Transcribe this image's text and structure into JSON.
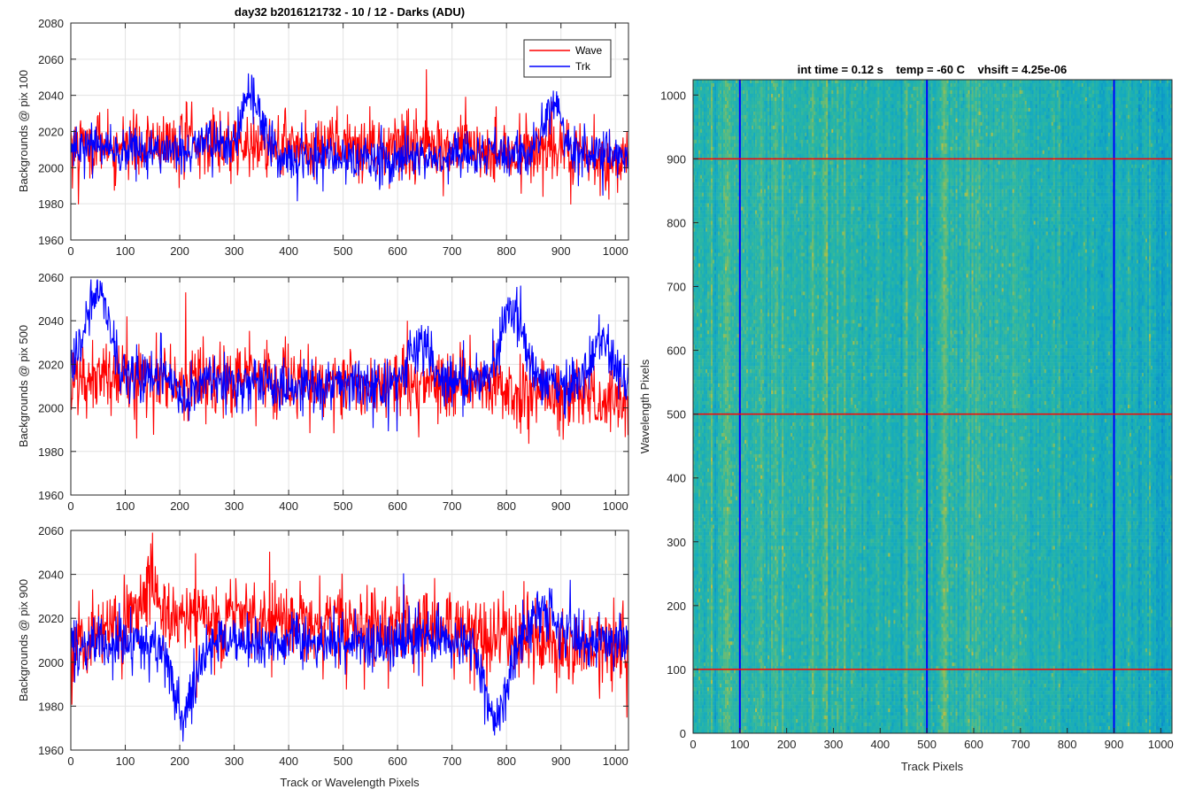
{
  "figure": {
    "colors": {
      "wave": "#ff0000",
      "trk": "#0000ff",
      "grid": "#e3e3e3",
      "axis": "#262626"
    }
  },
  "chart_data": [
    {
      "type": "line",
      "title": "day32 b2016121732 - 10 / 12 - Darks (ADU)",
      "xlabel": "",
      "ylabel": "Backgrounds @ pix 100",
      "xlim": [
        0,
        1024
      ],
      "ylim": [
        1960,
        2080
      ],
      "xticks": [
        0,
        100,
        200,
        300,
        400,
        500,
        600,
        700,
        800,
        900,
        1000
      ],
      "yticks": [
        1960,
        1980,
        2000,
        2020,
        2040,
        2060,
        2080
      ],
      "grid": true,
      "legend": {
        "location": "top-right",
        "entries": [
          "Wave",
          "Trk"
        ]
      },
      "series": [
        {
          "name": "Wave",
          "color": "#ff0000",
          "base": 2012,
          "noise": 9,
          "bumps": [],
          "trend": [
            [
              0,
              2012
            ],
            [
              650,
              2012
            ],
            [
              1024,
              2004
            ]
          ]
        },
        {
          "name": "Trk",
          "color": "#0000ff",
          "base": 2012,
          "noise": 6,
          "bumps": [
            [
              330,
              32,
              25
            ],
            [
              885,
              28,
              22
            ],
            [
              260,
              8,
              20
            ]
          ],
          "trend": [
            [
              0,
              2012
            ],
            [
              500,
              2005
            ],
            [
              1024,
              2008
            ]
          ]
        }
      ]
    },
    {
      "type": "line",
      "title": "",
      "xlabel": "",
      "ylabel": "Backgrounds @ pix 500",
      "xlim": [
        0,
        1024
      ],
      "ylim": [
        1960,
        2060
      ],
      "xticks": [
        0,
        100,
        200,
        300,
        400,
        500,
        600,
        700,
        800,
        900,
        1000
      ],
      "yticks": [
        1960,
        1980,
        2000,
        2020,
        2040,
        2060
      ],
      "grid": true,
      "series": [
        {
          "name": "Wave",
          "color": "#ff0000",
          "base": 2012,
          "noise": 8,
          "bumps": [],
          "trend": [
            [
              0,
              2012
            ],
            [
              700,
              2012
            ],
            [
              1024,
              2002
            ]
          ]
        },
        {
          "name": "Trk",
          "color": "#0000ff",
          "base": 2012,
          "noise": 6,
          "bumps": [
            [
              50,
              35,
              30
            ],
            [
              640,
              22,
              25
            ],
            [
              810,
              35,
              28
            ],
            [
              975,
              20,
              25
            ],
            [
              210,
              -10,
              20
            ]
          ],
          "trend": [
            [
              0,
              2018
            ],
            [
              400,
              2010
            ],
            [
              1024,
              2012
            ]
          ]
        }
      ]
    },
    {
      "type": "line",
      "title": "",
      "xlabel": "Track or Wavelength Pixels",
      "ylabel": "Backgrounds @ pix 900",
      "xlim": [
        0,
        1024
      ],
      "ylim": [
        1960,
        2060
      ],
      "xticks": [
        0,
        100,
        200,
        300,
        400,
        500,
        600,
        700,
        800,
        900,
        1000
      ],
      "yticks": [
        1960,
        1980,
        2000,
        2020,
        2040,
        2060
      ],
      "grid": true,
      "series": [
        {
          "name": "Wave",
          "color": "#ff0000",
          "base": 2018,
          "noise": 9,
          "bumps": [
            [
              150,
              18,
              30
            ]
          ],
          "trend": [
            [
              0,
              2012
            ],
            [
              300,
              2020
            ],
            [
              700,
              2015
            ],
            [
              1024,
              2004
            ]
          ]
        },
        {
          "name": "Trk",
          "color": "#0000ff",
          "base": 2008,
          "noise": 6,
          "bumps": [
            [
              205,
              -35,
              25
            ],
            [
              780,
              -35,
              30
            ],
            [
              870,
              15,
              30
            ]
          ],
          "trend": [
            [
              0,
              2008
            ],
            [
              500,
              2010
            ],
            [
              1024,
              2010
            ]
          ]
        }
      ]
    },
    {
      "type": "heatmap",
      "title": "int time = 0.12 s    temp = -60 C    vhsift = 4.25e-06",
      "xlabel": "Track Pixels",
      "ylabel": "Wavelength Pixels",
      "xlim": [
        0,
        1024
      ],
      "ylim": [
        0,
        1024
      ],
      "xticks": [
        0,
        100,
        200,
        300,
        400,
        500,
        600,
        700,
        800,
        900,
        1000
      ],
      "yticks": [
        0,
        100,
        200,
        300,
        400,
        500,
        600,
        700,
        800,
        900,
        1000
      ],
      "grid": false,
      "colormap": "parula",
      "vertical_lines": {
        "color": "#0000ff",
        "x": [
          100,
          500,
          900
        ]
      },
      "horizontal_lines": {
        "color": "#ff0000",
        "y": [
          100,
          500,
          900
        ]
      }
    }
  ]
}
